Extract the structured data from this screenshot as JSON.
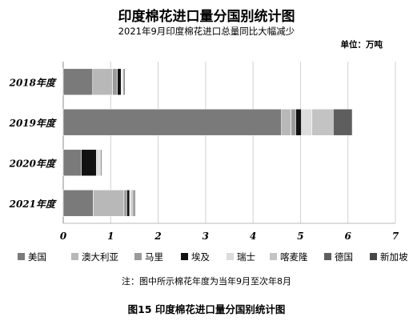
{
  "chart_data": {
    "type": "bar",
    "orientation": "horizontal",
    "stacked": true,
    "title": "印度棉花进口量分国别统计图",
    "subtitle": "2021年9月印度棉花进口总量同比大幅减少",
    "unit_label": "单位：万吨",
    "categories": [
      "2018年度",
      "2019年度",
      "2020年度",
      "2021年度"
    ],
    "series": [
      {
        "name": "美国",
        "color": "#7a7a7a",
        "values": [
          0.62,
          4.6,
          0.38,
          0.63
        ]
      },
      {
        "name": "澳大利亚",
        "color": "#b8b8b8",
        "values": [
          0.42,
          0.2,
          0.0,
          0.65
        ]
      },
      {
        "name": "马里",
        "color": "#9b9b9b",
        "values": [
          0.1,
          0.1,
          0.0,
          0.06
        ]
      },
      {
        "name": "埃及",
        "color": "#111111",
        "values": [
          0.08,
          0.12,
          0.32,
          0.06
        ]
      },
      {
        "name": "瑞士",
        "color": "#dcdcdc",
        "values": [
          0.02,
          0.22,
          0.06,
          0.03
        ]
      },
      {
        "name": "喀麦隆",
        "color": "#c3c3c3",
        "values": [
          0.02,
          0.45,
          0.03,
          0.04
        ]
      },
      {
        "name": "德国",
        "color": "#5e5e5e",
        "values": [
          0.02,
          0.4,
          0.0,
          0.03
        ]
      },
      {
        "name": "新加坡",
        "color": "#474747",
        "values": [
          0.02,
          0.0,
          0.02,
          0.02
        ]
      }
    ],
    "xlim": [
      0,
      7
    ],
    "xticks": [
      "0",
      "1",
      "2",
      "3",
      "4",
      "5",
      "6",
      "7"
    ],
    "grid": true,
    "legend_position": "bottom"
  },
  "note": "注：图中所示棉花年度为当年9月至次年8月",
  "caption": "图15   印度棉花进口量分国别统计图"
}
